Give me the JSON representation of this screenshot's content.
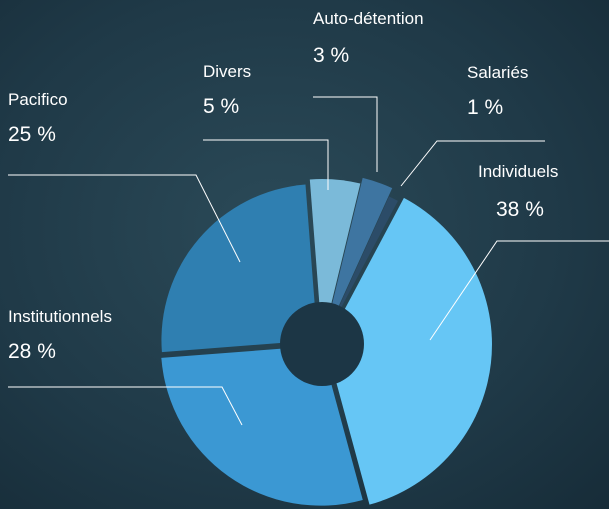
{
  "chart_data": {
    "type": "pie",
    "categories": [
      "Individuels",
      "Institutionnels",
      "Pacifico",
      "Divers",
      "Auto-détention",
      "Salariés"
    ],
    "values": [
      38,
      28,
      25,
      5,
      3,
      1
    ],
    "value_labels": [
      "38 %",
      "28 %",
      "25 %",
      "5 %",
      "3 %",
      "1 %"
    ],
    "colors": [
      "#66c6f5",
      "#3b98d3",
      "#2f7fb1",
      "#7bbad9",
      "#3e75a1",
      "#2c4c68"
    ]
  }
}
